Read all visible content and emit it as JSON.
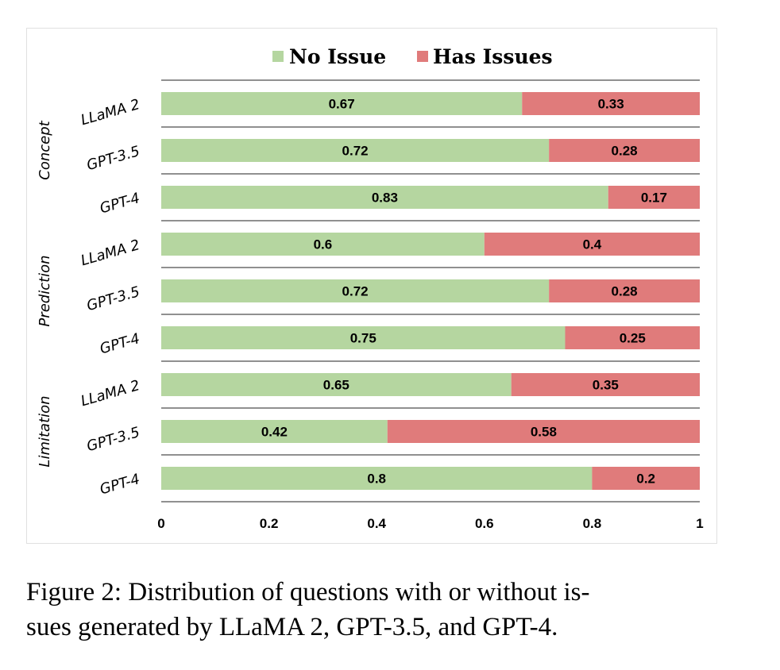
{
  "caption": {
    "line1": "Figure 2: Distribution of questions with or without is-",
    "line2": "sues generated by LLaMA 2, GPT-3.5, and GPT-4."
  },
  "chart_data": {
    "type": "bar",
    "orientation": "horizontal",
    "stacked": true,
    "legend": [
      "No Issue",
      "Has Issues"
    ],
    "legend_position": "top",
    "colors": {
      "No Issue": "#b5d6a0",
      "Has Issues": "#e07b7b"
    },
    "groups": [
      {
        "name": "Concept",
        "categories": [
          "LLaMA 2",
          "GPT-3.5",
          "GPT-4"
        ],
        "no_issue": [
          0.67,
          0.72,
          0.83
        ],
        "has_issues": [
          0.33,
          0.28,
          0.17
        ]
      },
      {
        "name": "Prediction",
        "categories": [
          "LLaMA 2",
          "GPT-3.5",
          "GPT-4"
        ],
        "no_issue": [
          0.6,
          0.72,
          0.75
        ],
        "has_issues": [
          0.4,
          0.28,
          0.25
        ]
      },
      {
        "name": "Limitation",
        "categories": [
          "LLaMA 2",
          "GPT-3.5",
          "GPT-4"
        ],
        "no_issue": [
          0.65,
          0.42,
          0.8
        ],
        "has_issues": [
          0.35,
          0.58,
          0.2
        ]
      }
    ],
    "x_ticks": [
      "0",
      "0.2",
      "0.4",
      "0.6",
      "0.8",
      "1"
    ],
    "xlim": [
      0,
      1
    ],
    "grid": "horizontal separators"
  }
}
